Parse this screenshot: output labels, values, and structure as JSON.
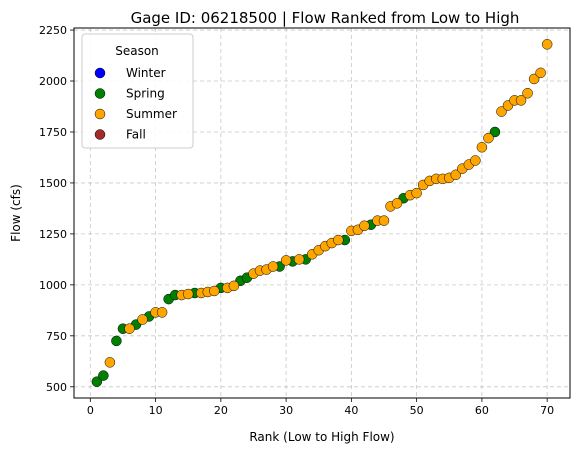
{
  "chart_data": {
    "type": "scatter",
    "title": "Gage ID: 06218500 | Flow Ranked from Low to High",
    "xlabel": "Rank (Low to High Flow)",
    "ylabel": "Flow (cfs)",
    "xlim": [
      -2.5,
      73.5
    ],
    "ylim": [
      445,
      2260
    ],
    "xticks": [
      0,
      10,
      20,
      30,
      40,
      50,
      60,
      70
    ],
    "yticks": [
      500,
      750,
      1000,
      1250,
      1500,
      1750,
      2000,
      2250
    ],
    "grid": true,
    "legend": {
      "title": "Season",
      "placement": "upper-left"
    },
    "series": [
      {
        "name": "Winter",
        "color": "#0000ff",
        "points": []
      },
      {
        "name": "Spring",
        "color": "#008000",
        "points": [
          [
            1,
            525
          ],
          [
            2,
            555
          ],
          [
            4,
            725
          ],
          [
            5,
            785
          ],
          [
            7,
            805
          ],
          [
            9,
            845
          ],
          [
            12,
            930
          ],
          [
            13,
            950
          ],
          [
            16,
            960
          ],
          [
            20,
            985
          ],
          [
            23,
            1020
          ],
          [
            24,
            1035
          ],
          [
            29,
            1090
          ],
          [
            31,
            1115
          ],
          [
            33,
            1125
          ],
          [
            39,
            1220
          ],
          [
            43,
            1295
          ],
          [
            48,
            1425
          ],
          [
            62,
            1750
          ]
        ]
      },
      {
        "name": "Summer",
        "color": "#ffa500",
        "points": [
          [
            3,
            620
          ],
          [
            6,
            785
          ],
          [
            8,
            830
          ],
          [
            10,
            865
          ],
          [
            11,
            865
          ],
          [
            14,
            950
          ],
          [
            15,
            955
          ],
          [
            17,
            960
          ],
          [
            18,
            965
          ],
          [
            19,
            970
          ],
          [
            21,
            985
          ],
          [
            22,
            995
          ],
          [
            25,
            1055
          ],
          [
            26,
            1070
          ],
          [
            27,
            1075
          ],
          [
            28,
            1090
          ],
          [
            30,
            1120
          ],
          [
            32,
            1125
          ],
          [
            34,
            1150
          ],
          [
            35,
            1170
          ],
          [
            36,
            1190
          ],
          [
            37,
            1205
          ],
          [
            38,
            1220
          ],
          [
            40,
            1265
          ],
          [
            41,
            1270
          ],
          [
            42,
            1290
          ],
          [
            44,
            1315
          ],
          [
            45,
            1315
          ],
          [
            46,
            1385
          ],
          [
            47,
            1400
          ],
          [
            49,
            1440
          ],
          [
            50,
            1450
          ],
          [
            51,
            1490
          ],
          [
            52,
            1510
          ],
          [
            53,
            1520
          ],
          [
            54,
            1520
          ],
          [
            55,
            1525
          ],
          [
            56,
            1540
          ],
          [
            57,
            1570
          ],
          [
            58,
            1590
          ],
          [
            59,
            1610
          ],
          [
            60,
            1675
          ],
          [
            61,
            1720
          ],
          [
            63,
            1850
          ],
          [
            64,
            1880
          ],
          [
            65,
            1905
          ],
          [
            66,
            1905
          ],
          [
            67,
            1940
          ],
          [
            68,
            2010
          ],
          [
            69,
            2040
          ],
          [
            70,
            2180
          ]
        ]
      },
      {
        "name": "Fall",
        "color": "#a52a2a",
        "points": []
      }
    ]
  }
}
